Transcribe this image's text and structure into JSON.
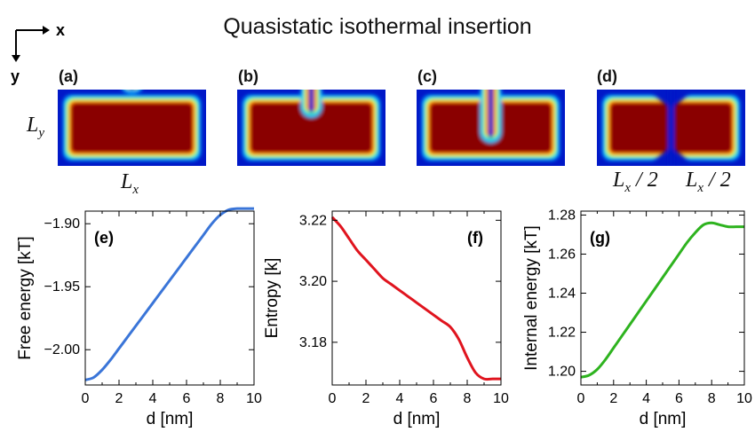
{
  "title": "Quasistatic isothermal insertion",
  "axes_indicator": {
    "x": "x",
    "y": "y"
  },
  "top_panels": [
    {
      "label": "(a)",
      "notch_fraction": 0.06
    },
    {
      "label": "(b)",
      "notch_fraction": 0.45
    },
    {
      "label": "(c)",
      "notch_fraction": 0.85
    },
    {
      "label": "(d)",
      "notch_fraction": 1.0
    }
  ],
  "dims": {
    "ly": {
      "main": "L",
      "sub": "y"
    },
    "lx": {
      "main": "L",
      "sub": "x"
    },
    "half1": {
      "main": "L",
      "sub": "x",
      "rest": " / 2"
    },
    "half2": {
      "main": "L",
      "sub": "x",
      "rest": " / 2"
    }
  },
  "colors": {
    "free": "#3a75d8",
    "entropy": "#e0141e",
    "internal": "#2eb31f",
    "hot": "#8a0000"
  },
  "chart_data": [
    {
      "type": "line",
      "label": "(e)",
      "ylabel": "Free energy [kT]",
      "xlabel": "d [nm]",
      "xlim": [
        0,
        10
      ],
      "ylim": [
        -2.028,
        -1.89
      ],
      "xticks": [
        "0",
        "2",
        "4",
        "6",
        "8",
        "10"
      ],
      "yticks": [
        "-1.90",
        "-1.95",
        "-2.00"
      ],
      "ytick_values": [
        -1.9,
        -1.95,
        -2.0
      ],
      "label_pos": "top-left",
      "x": [
        0,
        0.5,
        1,
        1.5,
        2,
        2.5,
        3,
        3.5,
        4,
        4.5,
        5,
        5.5,
        6,
        6.5,
        7,
        7.5,
        8,
        8.5,
        9,
        9.5,
        10
      ],
      "y": [
        -2.024,
        -2.022,
        -2.016,
        -2.008,
        -1.999,
        -1.99,
        -1.981,
        -1.972,
        -1.963,
        -1.954,
        -1.945,
        -1.936,
        -1.927,
        -1.918,
        -1.909,
        -1.9,
        -1.893,
        -1.889,
        -1.888,
        -1.888,
        -1.888
      ],
      "color": "#3a75d8"
    },
    {
      "type": "line",
      "label": "(f)",
      "ylabel": "Entropy [k]",
      "xlabel": "d [nm]",
      "xlim": [
        0,
        10
      ],
      "ylim": [
        3.166,
        3.223
      ],
      "xticks": [
        "0",
        "2",
        "4",
        "6",
        "8",
        "10"
      ],
      "yticks": [
        "3.22",
        "3.20",
        "3.18"
      ],
      "ytick_values": [
        3.22,
        3.2,
        3.18
      ],
      "label_pos": "top-right",
      "x": [
        0,
        0.5,
        1,
        1.5,
        2,
        2.5,
        3,
        3.5,
        4,
        4.5,
        5,
        5.5,
        6,
        6.5,
        7,
        7.5,
        8,
        8.5,
        9,
        9.5,
        10
      ],
      "y": [
        3.221,
        3.218,
        3.214,
        3.21,
        3.207,
        3.204,
        3.201,
        3.199,
        3.197,
        3.195,
        3.193,
        3.191,
        3.189,
        3.187,
        3.185,
        3.181,
        3.175,
        3.17,
        3.168,
        3.168,
        3.168
      ],
      "color": "#e0141e"
    },
    {
      "type": "line",
      "label": "(g)",
      "ylabel": "Internal energy [kT]",
      "xlabel": "d [nm]",
      "xlim": [
        0,
        10
      ],
      "ylim": [
        1.193,
        1.282
      ],
      "xticks": [
        "0",
        "2",
        "4",
        "6",
        "8",
        "10"
      ],
      "yticks": [
        "1.28",
        "1.26",
        "1.24",
        "1.22",
        "1.20"
      ],
      "ytick_values": [
        1.28,
        1.26,
        1.24,
        1.22,
        1.2
      ],
      "label_pos": "top-left",
      "x": [
        0,
        0.5,
        1,
        1.5,
        2,
        2.5,
        3,
        3.5,
        4,
        4.5,
        5,
        5.5,
        6,
        6.5,
        7,
        7.5,
        8,
        8.5,
        9,
        9.5,
        10
      ],
      "y": [
        1.197,
        1.198,
        1.201,
        1.206,
        1.212,
        1.218,
        1.224,
        1.23,
        1.236,
        1.242,
        1.248,
        1.254,
        1.26,
        1.266,
        1.271,
        1.275,
        1.276,
        1.275,
        1.274,
        1.274,
        1.274
      ],
      "color": "#2eb31f"
    }
  ]
}
